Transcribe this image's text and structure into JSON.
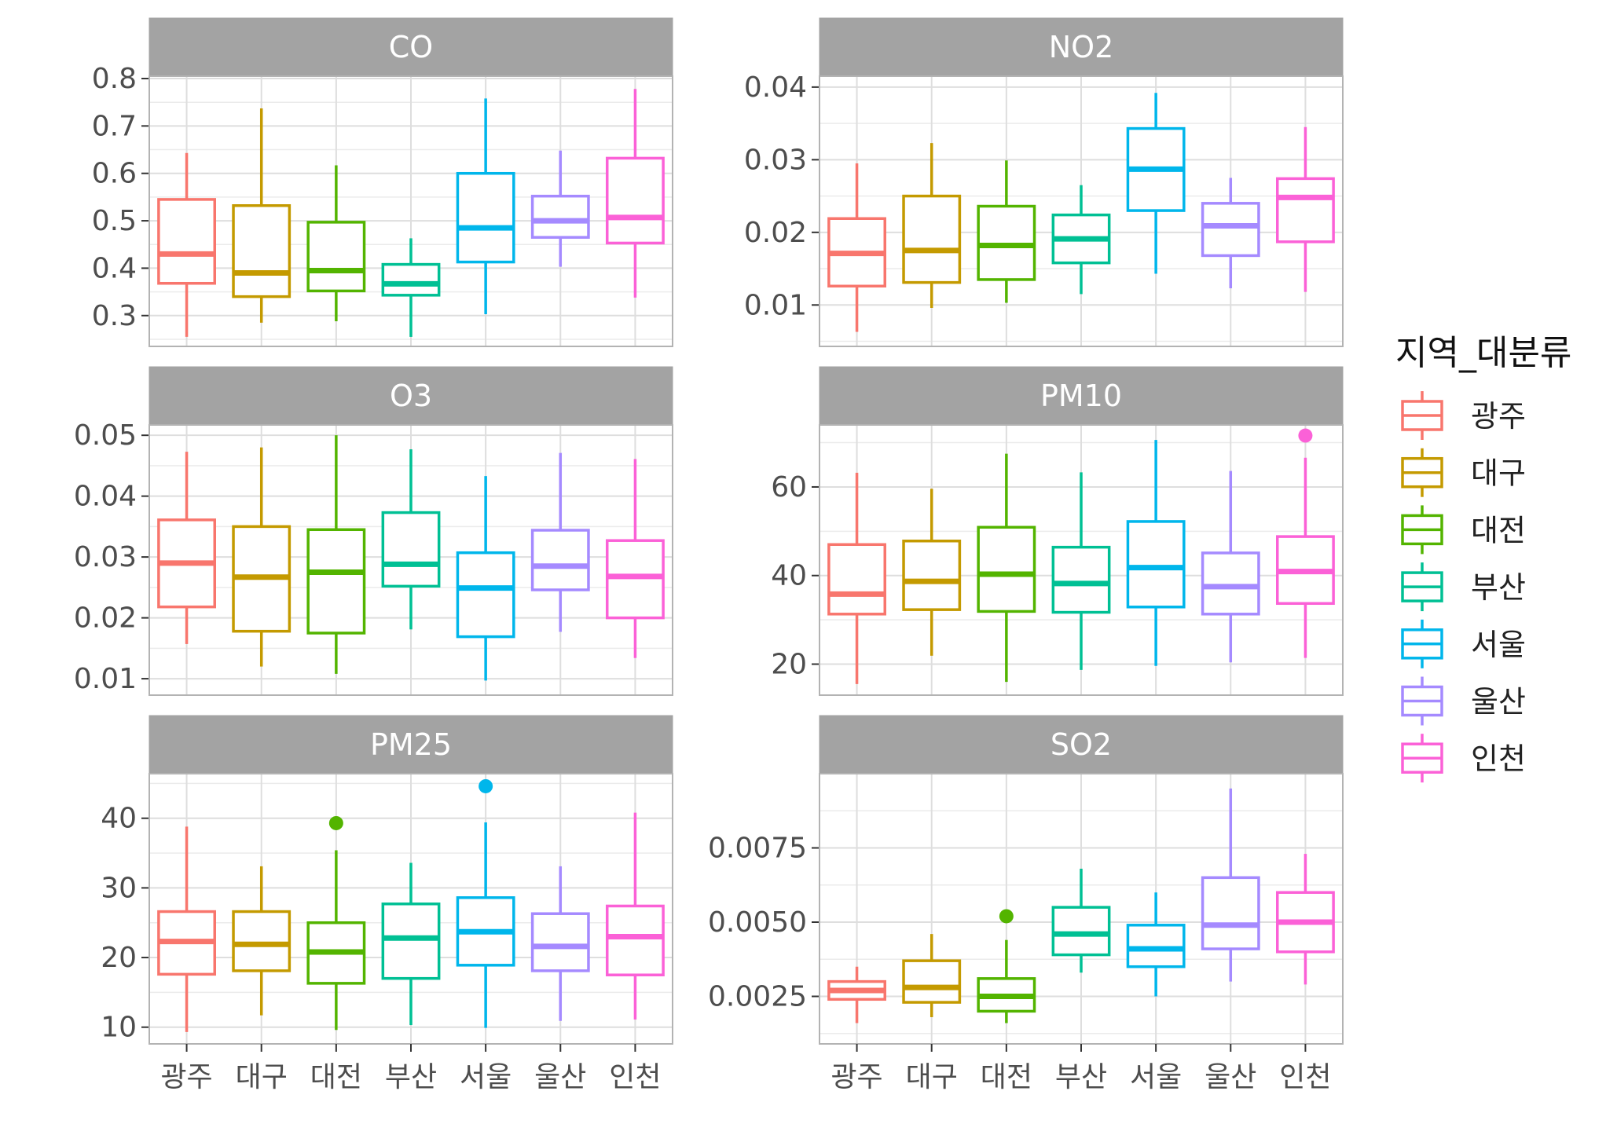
{
  "chart_data": {
    "type": "boxplot",
    "legend": {
      "title": "지역_대분류",
      "placement": "right",
      "items": [
        {
          "name": "광주",
          "color": "#F8766D"
        },
        {
          "name": "대구",
          "color": "#C49A00"
        },
        {
          "name": "대전",
          "color": "#53B400"
        },
        {
          "name": "부산",
          "color": "#00C094"
        },
        {
          "name": "서울",
          "color": "#00B6EB"
        },
        {
          "name": "울산",
          "color": "#A58AFF"
        },
        {
          "name": "인천",
          "color": "#FB61D7"
        }
      ]
    },
    "categories": [
      "광주",
      "대구",
      "대전",
      "부산",
      "서울",
      "울산",
      "인천"
    ],
    "grid": true,
    "panels": [
      {
        "title": "CO",
        "ylim": [
          0.235,
          0.805
        ],
        "ticks": [
          0.3,
          0.4,
          0.5,
          0.6,
          0.7,
          0.8
        ],
        "tick_labels": [
          "0.3",
          "0.4",
          "0.5",
          "0.6",
          "0.7",
          "0.8"
        ],
        "boxes": [
          {
            "min": 0.255,
            "q1": 0.368,
            "median": 0.43,
            "q3": 0.545,
            "max": 0.643
          },
          {
            "min": 0.285,
            "q1": 0.34,
            "median": 0.39,
            "q3": 0.532,
            "max": 0.737
          },
          {
            "min": 0.288,
            "q1": 0.352,
            "median": 0.395,
            "q3": 0.497,
            "max": 0.617
          },
          {
            "min": 0.255,
            "q1": 0.343,
            "median": 0.367,
            "q3": 0.408,
            "max": 0.463
          },
          {
            "min": 0.303,
            "q1": 0.413,
            "median": 0.485,
            "q3": 0.6,
            "max": 0.758
          },
          {
            "min": 0.403,
            "q1": 0.465,
            "median": 0.5,
            "q3": 0.552,
            "max": 0.648
          },
          {
            "min": 0.338,
            "q1": 0.453,
            "median": 0.507,
            "q3": 0.632,
            "max": 0.778
          }
        ],
        "outliers": []
      },
      {
        "title": "NO2",
        "ylim": [
          0.0043,
          0.0415
        ],
        "ticks": [
          0.01,
          0.02,
          0.03,
          0.04
        ],
        "tick_labels": [
          "0.01",
          "0.02",
          "0.03",
          "0.04"
        ],
        "boxes": [
          {
            "min": 0.0063,
            "q1": 0.0126,
            "median": 0.0171,
            "q3": 0.0219,
            "max": 0.0295
          },
          {
            "min": 0.0096,
            "q1": 0.0131,
            "median": 0.0175,
            "q3": 0.025,
            "max": 0.0323
          },
          {
            "min": 0.0103,
            "q1": 0.0135,
            "median": 0.0182,
            "q3": 0.0236,
            "max": 0.0299
          },
          {
            "min": 0.0115,
            "q1": 0.0158,
            "median": 0.0191,
            "q3": 0.0224,
            "max": 0.0265
          },
          {
            "min": 0.0143,
            "q1": 0.023,
            "median": 0.0287,
            "q3": 0.0343,
            "max": 0.0392
          },
          {
            "min": 0.0123,
            "q1": 0.0168,
            "median": 0.0209,
            "q3": 0.024,
            "max": 0.0275
          },
          {
            "min": 0.0118,
            "q1": 0.0187,
            "median": 0.0248,
            "q3": 0.0274,
            "max": 0.0345
          }
        ],
        "outliers": []
      },
      {
        "title": "O3",
        "ylim": [
          0.0073,
          0.0517
        ],
        "ticks": [
          0.01,
          0.02,
          0.03,
          0.04,
          0.05
        ],
        "tick_labels": [
          "0.01",
          "0.02",
          "0.03",
          "0.04",
          "0.05"
        ],
        "boxes": [
          {
            "min": 0.0157,
            "q1": 0.0218,
            "median": 0.029,
            "q3": 0.0361,
            "max": 0.0473
          },
          {
            "min": 0.012,
            "q1": 0.0178,
            "median": 0.0267,
            "q3": 0.035,
            "max": 0.048
          },
          {
            "min": 0.0108,
            "q1": 0.0175,
            "median": 0.0275,
            "q3": 0.0345,
            "max": 0.05
          },
          {
            "min": 0.0181,
            "q1": 0.0252,
            "median": 0.0288,
            "q3": 0.0373,
            "max": 0.0477
          },
          {
            "min": 0.0097,
            "q1": 0.0169,
            "median": 0.0249,
            "q3": 0.0307,
            "max": 0.0433
          },
          {
            "min": 0.0177,
            "q1": 0.0246,
            "median": 0.0285,
            "q3": 0.0344,
            "max": 0.0471
          },
          {
            "min": 0.0134,
            "q1": 0.02,
            "median": 0.0268,
            "q3": 0.0327,
            "max": 0.0461
          }
        ],
        "outliers": []
      },
      {
        "title": "PM10",
        "ylim": [
          13,
          74
        ],
        "ticks": [
          20,
          40,
          60
        ],
        "tick_labels": [
          "20",
          "40",
          "60"
        ],
        "boxes": [
          {
            "min": 15.5,
            "q1": 31.3,
            "median": 35.8,
            "q3": 47.0,
            "max": 63.2
          },
          {
            "min": 21.9,
            "q1": 32.3,
            "median": 38.7,
            "q3": 47.8,
            "max": 59.6
          },
          {
            "min": 16.0,
            "q1": 31.9,
            "median": 40.3,
            "q3": 50.9,
            "max": 67.5
          },
          {
            "min": 18.7,
            "q1": 31.7,
            "median": 38.2,
            "q3": 46.4,
            "max": 63.3
          },
          {
            "min": 19.6,
            "q1": 32.9,
            "median": 41.8,
            "q3": 52.2,
            "max": 70.6
          },
          {
            "min": 20.4,
            "q1": 31.3,
            "median": 37.5,
            "q3": 45.1,
            "max": 63.6
          },
          {
            "min": 21.4,
            "q1": 33.7,
            "median": 40.9,
            "q3": 48.8,
            "max": 66.6
          }
        ],
        "outliers": [
          {
            "category": "인천",
            "value": 71.6
          }
        ]
      },
      {
        "title": "PM25",
        "ylim": [
          7.6,
          46.4
        ],
        "ticks": [
          10,
          20,
          30,
          40
        ],
        "tick_labels": [
          "10",
          "20",
          "30",
          "40"
        ],
        "boxes": [
          {
            "min": 9.3,
            "q1": 17.6,
            "median": 22.3,
            "q3": 26.6,
            "max": 38.8
          },
          {
            "min": 11.7,
            "q1": 18.1,
            "median": 21.9,
            "q3": 26.6,
            "max": 33.1
          },
          {
            "min": 9.6,
            "q1": 16.3,
            "median": 20.8,
            "q3": 25.0,
            "max": 35.4
          },
          {
            "min": 10.3,
            "q1": 17.0,
            "median": 22.8,
            "q3": 27.7,
            "max": 33.6
          },
          {
            "min": 9.9,
            "q1": 18.9,
            "median": 23.7,
            "q3": 28.6,
            "max": 39.4
          },
          {
            "min": 10.9,
            "q1": 18.1,
            "median": 21.6,
            "q3": 26.3,
            "max": 33.1
          },
          {
            "min": 11.1,
            "q1": 17.5,
            "median": 23.0,
            "q3": 27.4,
            "max": 40.8
          }
        ],
        "outliers": [
          {
            "category": "대전",
            "value": 39.3
          },
          {
            "category": "서울",
            "value": 44.6
          }
        ]
      },
      {
        "title": "SO2",
        "ylim": [
          0.0009,
          0.01
        ],
        "ticks": [
          0.0025,
          0.005,
          0.0075
        ],
        "tick_labels": [
          "0.0025",
          "0.0050",
          "0.0075"
        ],
        "boxes": [
          {
            "min": 0.0016,
            "q1": 0.0024,
            "median": 0.0027,
            "q3": 0.003,
            "max": 0.0035
          },
          {
            "min": 0.0018,
            "q1": 0.0023,
            "median": 0.0028,
            "q3": 0.0037,
            "max": 0.0046
          },
          {
            "min": 0.0016,
            "q1": 0.002,
            "median": 0.0025,
            "q3": 0.0031,
            "max": 0.0044
          },
          {
            "min": 0.0033,
            "q1": 0.0039,
            "median": 0.0046,
            "q3": 0.0055,
            "max": 0.0068
          },
          {
            "min": 0.0025,
            "q1": 0.0035,
            "median": 0.0041,
            "q3": 0.0049,
            "max": 0.006
          },
          {
            "min": 0.003,
            "q1": 0.0041,
            "median": 0.0049,
            "q3": 0.0065,
            "max": 0.0095
          },
          {
            "min": 0.0029,
            "q1": 0.004,
            "median": 0.005,
            "q3": 0.006,
            "max": 0.0073
          }
        ],
        "outliers": [
          {
            "category": "대전",
            "value": 0.0052
          }
        ]
      }
    ]
  }
}
